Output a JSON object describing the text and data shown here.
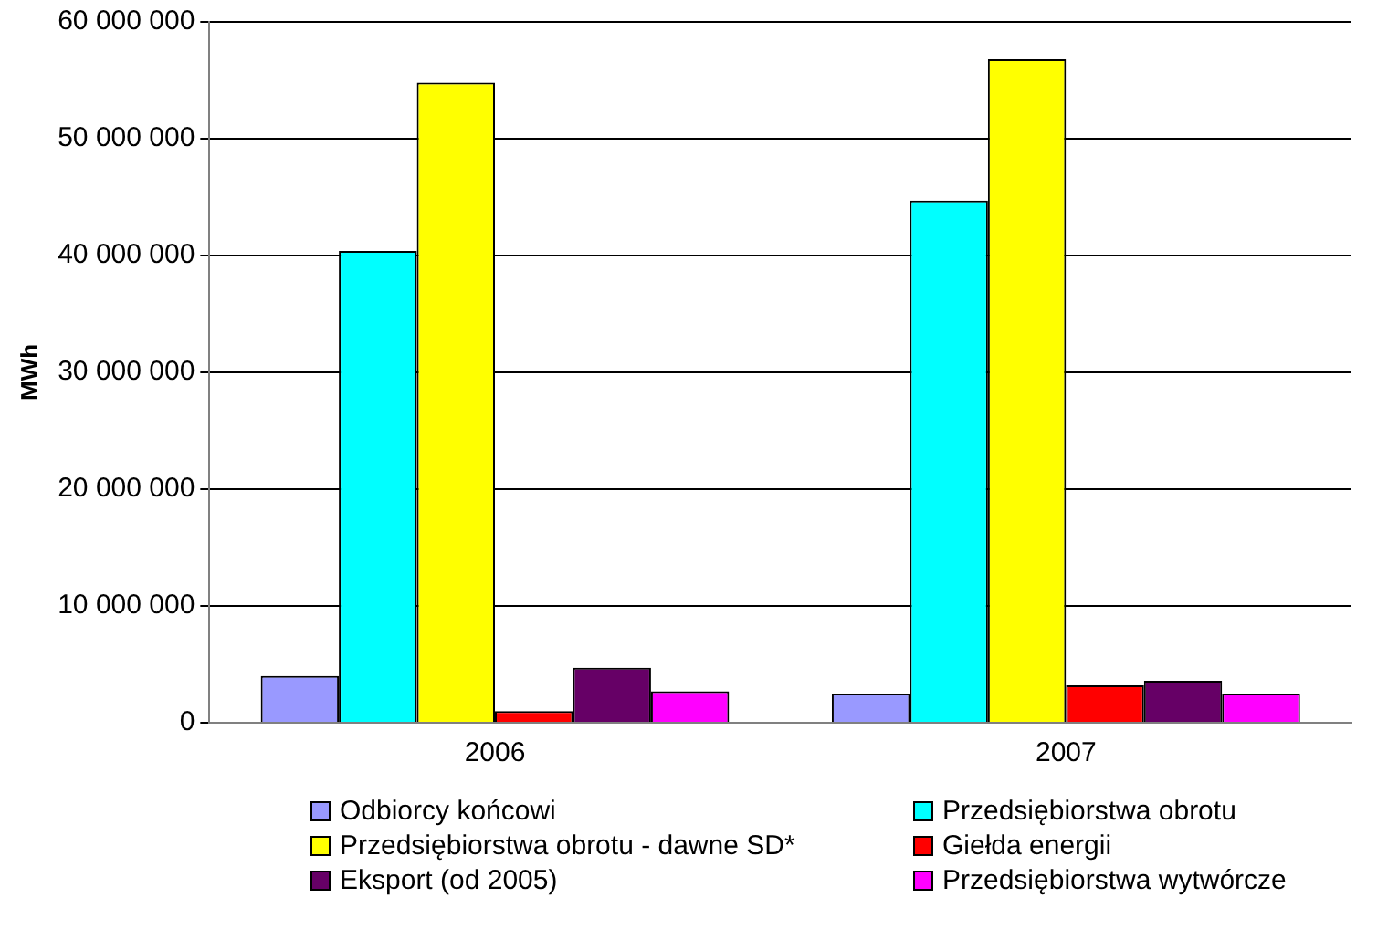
{
  "chart_data": {
    "type": "bar",
    "ylabel": "MWh",
    "categories": [
      "2006",
      "2007"
    ],
    "series": [
      {
        "name": "Odbiorcy końcowi",
        "color": "#9999ff",
        "values": [
          4000000,
          2500000
        ]
      },
      {
        "name": "Przedsiębiorstwa obrotu",
        "color": "#00ffff",
        "values": [
          40400000,
          44700000
        ]
      },
      {
        "name": "Przedsiębiorstwa obrotu - dawne SD*",
        "color": "#ffff00",
        "values": [
          54800000,
          56800000
        ]
      },
      {
        "name": "Giełda energii",
        "color": "#ff0000",
        "values": [
          1000000,
          3200000
        ]
      },
      {
        "name": "Eksport (od 2005)",
        "color": "#660066",
        "values": [
          4700000,
          3600000
        ]
      },
      {
        "name": "Przedsiębiorstwa wytwórcze",
        "color": "#ff00ff",
        "values": [
          2700000,
          2500000
        ]
      }
    ],
    "ylim": [
      0,
      60000000
    ],
    "yticks": [
      0,
      {
        "value": 10000000,
        "label": "10 000 000"
      },
      {
        "value": 20000000,
        "label": "20 000 000"
      },
      {
        "value": 30000000,
        "label": "30 000 000"
      },
      {
        "value": 40000000,
        "label": "40 000 000"
      },
      {
        "value": 50000000,
        "label": "50 000 000"
      },
      {
        "value": 60000000,
        "label": "60 000 000"
      }
    ],
    "grid": "y",
    "legend": "bottom"
  }
}
